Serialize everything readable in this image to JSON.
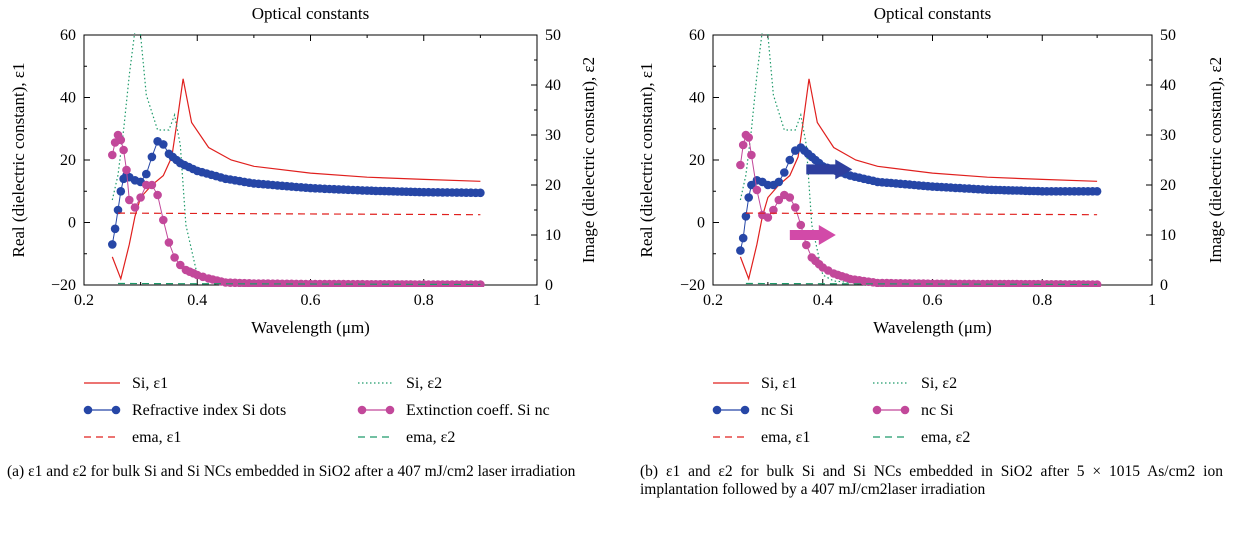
{
  "chart_data": [
    {
      "type": "line",
      "panel": "a",
      "title": "Optical constants",
      "xlabel": "Wavelength (μm)",
      "ylabel": "Real (dielectric constant), ε1",
      "y2label": "Image (dielectric constant), ε2",
      "xlim": [
        0.2,
        1
      ],
      "ylim": [
        -20,
        60
      ],
      "y2lim": [
        0,
        50
      ],
      "x_ticks": [
        "0.2",
        "0.4",
        "0.6",
        "0.8",
        "1"
      ],
      "y_ticks": [
        "−20",
        "0",
        "20",
        "40",
        "60"
      ],
      "y2_ticks": [
        "0",
        "10",
        "20",
        "30",
        "40",
        "50"
      ],
      "grid": false,
      "series": [
        {
          "name": "Si, ε1",
          "axis": "left",
          "color": "#e0201e",
          "style": "solid",
          "x": [
            0.25,
            0.265,
            0.28,
            0.29,
            0.3,
            0.32,
            0.34,
            0.355,
            0.365,
            0.375,
            0.39,
            0.42,
            0.46,
            0.5,
            0.6,
            0.7,
            0.8,
            0.9
          ],
          "y": [
            -11,
            -18,
            -7,
            2,
            8,
            12,
            15,
            21,
            33,
            46,
            32,
            24,
            20,
            18,
            15.8,
            14.5,
            13.8,
            13.2
          ]
        },
        {
          "name": "Si, ε2",
          "axis": "right",
          "color": "#1e9a6a",
          "style": "dotted",
          "x": [
            0.25,
            0.26,
            0.27,
            0.28,
            0.29,
            0.295,
            0.3,
            0.31,
            0.33,
            0.35,
            0.36,
            0.37,
            0.38,
            0.4,
            0.42,
            0.45,
            0.5,
            0.6,
            0.7,
            0.8,
            0.9
          ],
          "y": [
            17,
            22,
            31,
            42,
            51,
            55,
            50,
            38,
            31,
            31,
            34,
            28,
            12,
            2,
            0.8,
            0.5,
            0.3,
            0.2,
            0.1,
            0.05,
            0.05
          ]
        },
        {
          "name": "Refractive index Si dots",
          "axis": "left",
          "color": "#2646a6",
          "style": "dots",
          "x": [
            0.25,
            0.255,
            0.26,
            0.265,
            0.27,
            0.275,
            0.28,
            0.29,
            0.3,
            0.31,
            0.32,
            0.33,
            0.34,
            0.35,
            0.37,
            0.4,
            0.45,
            0.5,
            0.6,
            0.7,
            0.8,
            0.9
          ],
          "y": [
            -7,
            -2,
            4,
            10,
            14,
            15,
            14.5,
            13.5,
            13,
            15.5,
            21,
            26,
            25,
            22,
            19,
            16.5,
            14,
            12.5,
            11,
            10.2,
            9.7,
            9.5
          ]
        },
        {
          "name": "Extinction coeff. Si nc",
          "axis": "right",
          "color": "#c2489a",
          "style": "dots",
          "x": [
            0.25,
            0.255,
            0.26,
            0.265,
            0.27,
            0.275,
            0.28,
            0.29,
            0.3,
            0.31,
            0.32,
            0.33,
            0.34,
            0.35,
            0.36,
            0.37,
            0.38,
            0.4,
            0.42,
            0.45,
            0.5,
            0.6,
            0.7,
            0.8,
            0.9
          ],
          "y": [
            26,
            28.5,
            30,
            29,
            27,
            23,
            17,
            15.5,
            17.5,
            20,
            20,
            18,
            13,
            8.5,
            5.5,
            4,
            3,
            2,
            1.3,
            0.5,
            0.3,
            0.2,
            0.15,
            0.1,
            0.1
          ]
        },
        {
          "name": "ema, ε1",
          "axis": "left",
          "color": "#e0201e",
          "style": "dashed",
          "x": [
            0.26,
            0.9
          ],
          "y": [
            3,
            2.5
          ]
        },
        {
          "name": "ema, ε2",
          "axis": "right",
          "color": "#1e9a6a",
          "style": "dashed",
          "x": [
            0.26,
            0.9
          ],
          "y": [
            0.3,
            0.1
          ]
        }
      ],
      "legend": [
        {
          "label": "Si, ε1",
          "series": 0
        },
        {
          "label": "Si, ε2",
          "series": 1
        },
        {
          "label": "Refractive index Si dots",
          "series": 2
        },
        {
          "label": "Extinction coeff. Si nc",
          "series": 3
        },
        {
          "label": "ema, ε1",
          "series": 4
        },
        {
          "label": "ema, ε2",
          "series": 5
        }
      ],
      "legend_placement": "bottom"
    },
    {
      "type": "line",
      "panel": "b",
      "title": "Optical constants",
      "xlabel": "Wavelength (μm)",
      "ylabel": "Real (dielectric constant), ε1",
      "y2label": "Image (dielectric constant), ε2",
      "xlim": [
        0.2,
        1
      ],
      "ylim": [
        -20,
        60
      ],
      "y2lim": [
        0,
        50
      ],
      "x_ticks": [
        "0.2",
        "0.4",
        "0.6",
        "0.8",
        "1"
      ],
      "y_ticks": [
        "−20",
        "0",
        "20",
        "40",
        "60"
      ],
      "y2_ticks": [
        "0",
        "10",
        "20",
        "30",
        "40",
        "50"
      ],
      "grid": false,
      "series": [
        {
          "name": "Si, ε1",
          "axis": "left",
          "color": "#e0201e",
          "style": "solid",
          "x": [
            0.25,
            0.265,
            0.28,
            0.29,
            0.3,
            0.32,
            0.34,
            0.355,
            0.365,
            0.375,
            0.39,
            0.42,
            0.46,
            0.5,
            0.6,
            0.7,
            0.8,
            0.9
          ],
          "y": [
            -11,
            -18,
            -7,
            2,
            8,
            12,
            15,
            21,
            33,
            46,
            32,
            24,
            20,
            18,
            15.8,
            14.5,
            13.8,
            13.2
          ]
        },
        {
          "name": "Si, ε2",
          "axis": "right",
          "color": "#1e9a6a",
          "style": "dotted",
          "x": [
            0.25,
            0.26,
            0.27,
            0.28,
            0.29,
            0.295,
            0.3,
            0.31,
            0.33,
            0.35,
            0.36,
            0.37,
            0.38,
            0.4,
            0.42,
            0.45,
            0.5,
            0.6,
            0.7,
            0.8,
            0.9
          ],
          "y": [
            17,
            22,
            31,
            42,
            51,
            55,
            50,
            38,
            31,
            31,
            34,
            28,
            12,
            2,
            0.8,
            0.5,
            0.3,
            0.2,
            0.1,
            0.05,
            0.05
          ]
        },
        {
          "name": "nc Si",
          "axis": "left",
          "color": "#2646a6",
          "style": "dots",
          "x": [
            0.25,
            0.255,
            0.26,
            0.265,
            0.27,
            0.28,
            0.29,
            0.3,
            0.31,
            0.32,
            0.33,
            0.34,
            0.35,
            0.36,
            0.38,
            0.4,
            0.45,
            0.5,
            0.6,
            0.7,
            0.8,
            0.9
          ],
          "y": [
            -9,
            -5,
            2,
            8,
            12,
            13.5,
            13,
            12,
            12,
            13,
            16,
            20,
            23,
            24,
            21,
            18,
            15,
            13,
            11.5,
            10.5,
            10,
            10
          ]
        },
        {
          "name": "nc Si",
          "axis": "right",
          "color": "#c2489a",
          "style": "dots",
          "x": [
            0.25,
            0.255,
            0.26,
            0.265,
            0.27,
            0.28,
            0.29,
            0.3,
            0.31,
            0.32,
            0.33,
            0.34,
            0.35,
            0.36,
            0.37,
            0.38,
            0.4,
            0.42,
            0.45,
            0.5,
            0.6,
            0.7,
            0.8,
            0.9
          ],
          "y": [
            24,
            28,
            30,
            29.5,
            26,
            19,
            14,
            13.5,
            15,
            17,
            18,
            17.5,
            15.5,
            12,
            8,
            5.5,
            3.5,
            2.3,
            1.2,
            0.4,
            0.25,
            0.2,
            0.15,
            0.1
          ]
        },
        {
          "name": "ema, ε1",
          "axis": "left",
          "color": "#e0201e",
          "style": "dashed",
          "x": [
            0.26,
            0.9
          ],
          "y": [
            3,
            2.5
          ]
        },
        {
          "name": "ema, ε2",
          "axis": "right",
          "color": "#1e9a6a",
          "style": "dashed",
          "x": [
            0.26,
            0.9
          ],
          "y": [
            0.3,
            0.1
          ]
        }
      ],
      "legend": [
        {
          "label": "Si, ε1",
          "series": 0
        },
        {
          "label": "Si, ε2",
          "series": 1
        },
        {
          "label": "nc Si",
          "series": 2
        },
        {
          "label": "nc Si",
          "series": 3
        },
        {
          "label": "ema, ε1",
          "series": 4
        },
        {
          "label": "ema, ε2",
          "series": 5
        }
      ],
      "legend_placement": "bottom",
      "annotations": [
        {
          "type": "arrow",
          "points_to": "right",
          "color": "#2e3f9e",
          "axis": "left",
          "x": 0.37,
          "y": 17
        },
        {
          "type": "arrow",
          "points_to": "right",
          "color": "#d24aa8",
          "axis": "right",
          "x": 0.34,
          "y": 10
        }
      ]
    }
  ],
  "captions": {
    "a": "(a) ε1 and ε2 for bulk Si and Si NCs embedded in SiO2 after a 407 mJ/cm2 laser irradiation",
    "b": "(b) ε1 and ε2 for bulk Si and Si NCs embedded in SiO2 after 5 × 1015 As/cm2 ion implantation followed by a 407 mJ/cm2laser irradiation"
  }
}
